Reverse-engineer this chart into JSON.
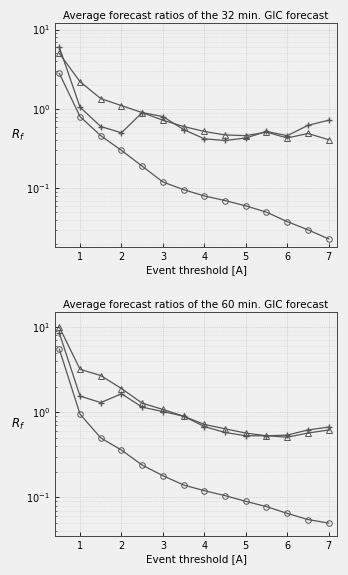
{
  "title1": "Average forecast ratios of the 32 min. GIC forecast",
  "title2": "Average forecast ratios of the 60 min. GIC forecast",
  "xlabel": "Event threshold [A]",
  "ylabel": "R_f",
  "background_color": "#f0f0f0",
  "plot1": {
    "x_plus": [
      0.5,
      1.0,
      1.5,
      2.0,
      2.5,
      3.0,
      3.5,
      4.0,
      4.5,
      5.0,
      5.5,
      6.0,
      6.5,
      7.0
    ],
    "y_plus": [
      6.0,
      1.05,
      0.6,
      0.5,
      0.9,
      0.8,
      0.55,
      0.42,
      0.4,
      0.43,
      0.52,
      0.46,
      0.62,
      0.72
    ],
    "x_circle": [
      0.5,
      1.0,
      1.5,
      2.0,
      2.5,
      3.0,
      3.5,
      4.0,
      4.5,
      5.0,
      5.5,
      6.0,
      6.5,
      7.0
    ],
    "y_circle": [
      2.8,
      0.8,
      0.46,
      0.3,
      0.19,
      0.12,
      0.096,
      0.08,
      0.07,
      0.06,
      0.05,
      0.038,
      0.03,
      0.023
    ],
    "x_triangle": [
      0.5,
      1.0,
      1.5,
      2.0,
      2.5,
      3.0,
      3.5,
      4.0,
      4.5,
      5.0,
      5.5,
      6.0,
      6.5,
      7.0
    ],
    "y_triangle": [
      5.0,
      2.2,
      1.35,
      1.1,
      0.9,
      0.72,
      0.6,
      0.52,
      0.47,
      0.46,
      0.51,
      0.43,
      0.49,
      0.41
    ]
  },
  "plot2": {
    "x_plus": [
      0.5,
      1.0,
      1.5,
      2.0,
      2.5,
      3.0,
      3.5,
      4.0,
      4.5,
      5.0,
      5.5,
      6.0,
      6.5,
      7.0
    ],
    "y_plus": [
      8.5,
      1.55,
      1.3,
      1.65,
      1.15,
      1.02,
      0.9,
      0.68,
      0.58,
      0.53,
      0.53,
      0.54,
      0.62,
      0.67
    ],
    "x_circle": [
      0.5,
      1.0,
      1.5,
      2.0,
      2.5,
      3.0,
      3.5,
      4.0,
      4.5,
      5.0,
      5.5,
      6.0,
      6.5,
      7.0
    ],
    "y_circle": [
      5.5,
      0.95,
      0.5,
      0.36,
      0.24,
      0.18,
      0.14,
      0.12,
      0.105,
      0.09,
      0.078,
      0.065,
      0.055,
      0.05
    ],
    "x_triangle": [
      0.5,
      1.0,
      1.5,
      2.0,
      2.5,
      3.0,
      3.5,
      4.0,
      4.5,
      5.0,
      5.5,
      6.0,
      6.5,
      7.0
    ],
    "y_triangle": [
      10.0,
      3.2,
      2.7,
      1.9,
      1.28,
      1.08,
      0.9,
      0.72,
      0.64,
      0.57,
      0.53,
      0.51,
      0.57,
      0.62
    ]
  },
  "line_color": "#555555",
  "marker_size_plus": 5,
  "marker_size_circle": 4,
  "marker_size_triangle": 5,
  "ylim1": [
    0.018,
    12
  ],
  "ylim2": [
    0.035,
    15
  ],
  "xlim": [
    0.4,
    7.2
  ],
  "xticks": [
    1,
    2,
    3,
    4,
    5,
    6,
    7
  ],
  "title_fontsize": 7.5,
  "label_fontsize": 7.5,
  "tick_fontsize": 7
}
